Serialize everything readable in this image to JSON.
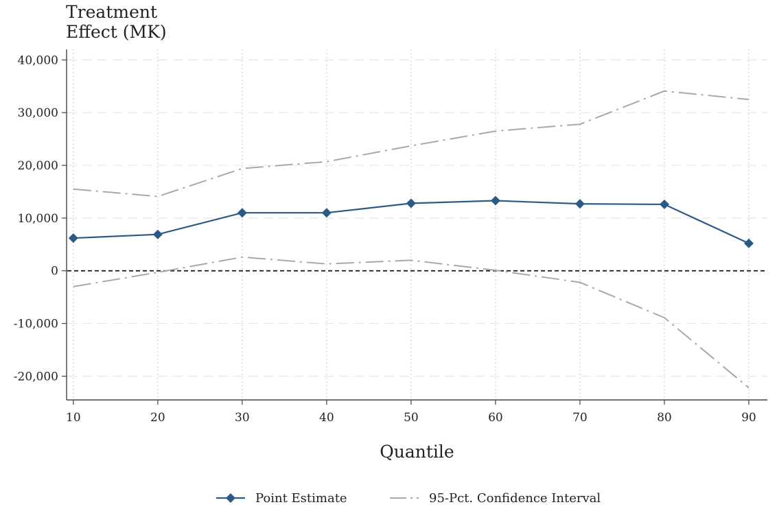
{
  "chart_data": {
    "type": "line",
    "ylabel": [
      "Treatment",
      "Effect (MK)"
    ],
    "xlabel": "Quantile",
    "x": [
      10,
      20,
      30,
      40,
      50,
      60,
      70,
      80,
      90
    ],
    "xlim": [
      9.2,
      92.2
    ],
    "ylim": [
      -24500,
      42000
    ],
    "yticks": [
      -20000,
      -10000,
      0,
      10000,
      20000,
      30000,
      40000
    ],
    "ytick_labels": [
      "-20,000",
      "-10,000",
      "0",
      "10,000",
      "20,000",
      "30,000",
      "40,000"
    ],
    "xtick_labels": [
      "10",
      "20",
      "30",
      "40",
      "50",
      "60",
      "70",
      "80",
      "90"
    ],
    "reference_line": 0,
    "grid": true,
    "legend_position": "bottom",
    "series": [
      {
        "name": "Point Estimate",
        "color": "#2b5a86",
        "style": "solid",
        "marker": "diamond",
        "values": [
          6200,
          6900,
          11000,
          11000,
          12800,
          13300,
          12700,
          12600,
          5200
        ]
      },
      {
        "name": "95-Pct. Confidence Interval",
        "color": "#a8a8a8",
        "style": "dash-dot",
        "marker": "none",
        "values": [
          15500,
          14100,
          19400,
          20700,
          23700,
          26500,
          27800,
          34100,
          32500
        ]
      },
      {
        "name": "",
        "color": "#a8a8a8",
        "style": "dash-dot",
        "marker": "none",
        "values": [
          -3000,
          -300,
          2600,
          1300,
          2000,
          100,
          -2200,
          -8900,
          -22200
        ]
      }
    ]
  }
}
